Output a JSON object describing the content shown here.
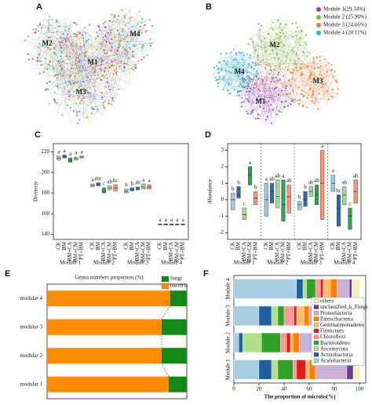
{
  "networks": [
    {
      "panel_label": "A",
      "labels": [
        "M1",
        "M2",
        "M3",
        "M4"
      ]
    },
    {
      "panel_label": "B",
      "labels": [
        "M1",
        "M2",
        "M3",
        "M4"
      ],
      "legend": [
        {
          "name": "Module 1(29.34%)",
          "color": "#9b3fb0"
        },
        {
          "name": "Module 2 (25.90%)",
          "color": "#7cba45"
        },
        {
          "name": "Module 3 (24.66%)",
          "color": "#f07c3a"
        },
        {
          "name": "Module 4 (20.11%)",
          "color": "#2fb3d9"
        }
      ]
    }
  ],
  "chart_data": [
    {
      "type": "box",
      "panel_label": "C",
      "ylabel": "Diversity",
      "categories": [
        "Module 1",
        "Module 2",
        "Module 3",
        "Module 4"
      ],
      "ylim": [
        135,
        228
      ],
      "yticks": [
        140,
        160,
        180,
        200,
        220
      ],
      "series": [
        {
          "name": "CK",
          "color": "#9ecae1",
          "q1": [
            212,
            186,
            180,
            149
          ],
          "median": [
            214,
            187.5,
            182,
            149.5
          ],
          "q3": [
            216,
            189,
            184,
            150
          ],
          "letters": [
            "a",
            "a",
            "b",
            "a"
          ]
        },
        {
          "name": "BM",
          "color": "#3a7dc0",
          "q1": [
            214,
            187,
            182,
            149
          ],
          "median": [
            215.5,
            188.5,
            183.5,
            149.5
          ],
          "q3": [
            217,
            190,
            185,
            150
          ],
          "letters": [
            "a",
            "abc",
            "b",
            "a"
          ]
        },
        {
          "name": "BM+CA",
          "color": "#31a354",
          "q1": [
            210,
            180,
            183,
            149
          ],
          "median": [
            212,
            182,
            184.5,
            149.5
          ],
          "q3": [
            214,
            185,
            186,
            150
          ],
          "letters": [
            "a",
            "c",
            "ab",
            "a"
          ]
        },
        {
          "name": "BM+CM",
          "color": "#a1d99b",
          "q1": [
            212,
            183,
            184,
            149
          ],
          "median": [
            213.5,
            185,
            186,
            149.5
          ],
          "q3": [
            215,
            187,
            189,
            150
          ],
          "letters": [
            "a",
            "ab",
            "a",
            "a"
          ]
        },
        {
          "name": "PT+BM",
          "color": "#fc9272",
          "q1": [
            214,
            182,
            184,
            149
          ],
          "median": [
            215,
            185,
            186,
            149.5
          ],
          "q3": [
            216,
            188,
            188,
            150
          ],
          "letters": [
            "a",
            "bc",
            "a",
            "a"
          ]
        }
      ]
    },
    {
      "type": "box",
      "panel_label": "D",
      "ylabel": "Abundance",
      "categories": [
        "Module 1",
        "Module 2",
        "Module 3",
        "Module 4"
      ],
      "ylim": [
        -2.4,
        3.4
      ],
      "yticks": [
        -2,
        -1,
        0,
        1,
        2,
        3
      ],
      "series": [
        {
          "name": "CK",
          "color": "#9ecae1",
          "q1": [
            -0.6,
            -1.0,
            -0.6,
            0.5
          ],
          "median": [
            0,
            0,
            -0.3,
            1.0
          ],
          "q3": [
            0.4,
            1.0,
            -0.1,
            1.5
          ],
          "letters": [
            "b",
            "a",
            "b",
            "a"
          ]
        },
        {
          "name": "BM",
          "color": "#2b6cb0",
          "q1": [
            0.1,
            -0.2,
            -0.4,
            -1.6
          ],
          "median": [
            0.3,
            0.5,
            0,
            -0.5
          ],
          "q3": [
            0.8,
            1.0,
            0.5,
            0.3
          ],
          "letters": [
            "b",
            "ab",
            "b",
            "bc"
          ]
        },
        {
          "name": "BM+CA",
          "color": "#a1d99b",
          "q1": [
            -1.2,
            -0.5,
            0.2,
            -0.3
          ],
          "median": [
            -0.9,
            0.2,
            0.5,
            0.3
          ],
          "q3": [
            -0.5,
            1.2,
            0.8,
            0.8
          ],
          "letters": [
            "c",
            "ab",
            "ab",
            "ab"
          ]
        },
        {
          "name": "BM+CM",
          "color": "#31a354",
          "q1": [
            0.9,
            -1.3,
            -0.3,
            -1.8
          ],
          "median": [
            1.5,
            -0.3,
            0.3,
            -1.0
          ],
          "q3": [
            2.0,
            1.2,
            0.9,
            -0.5
          ],
          "letters": [
            "a",
            "a",
            "ab",
            "c"
          ]
        },
        {
          "name": "PT+BM",
          "color": "#fc9272",
          "q1": [
            -0.3,
            -0.8,
            -1.2,
            -0.2
          ],
          "median": [
            0.1,
            0.2,
            1.0,
            0.5
          ],
          "q3": [
            0.5,
            0.9,
            3.0,
            1.2
          ],
          "letters": [
            "b",
            "ab",
            "a",
            "ab"
          ]
        }
      ]
    },
    {
      "type": "bar",
      "panel_label": "E",
      "title": "Genus numbers proportion (%)",
      "categories": [
        "modular 1",
        "modular 2",
        "modular 3",
        "modular 4"
      ],
      "xlim": [
        0,
        100
      ],
      "series": [
        {
          "name": "bacteria",
          "color": "#ff8c00",
          "values": [
            87,
            82,
            82,
            88
          ]
        },
        {
          "name": "fungi",
          "color": "#138a17",
          "values": [
            13,
            18,
            18,
            12
          ]
        }
      ]
    },
    {
      "type": "bar",
      "panel_label": "F",
      "xlabel": "The proportion of microbs(%)",
      "categories": [
        "Module 1",
        "Module 2",
        "Module 3",
        "Module 4"
      ],
      "xlim": [
        0,
        105
      ],
      "xticks": [
        0,
        20,
        40,
        60,
        80,
        100
      ],
      "series": [
        {
          "name": "Acidobacteria",
          "color": "#a6cee3",
          "values": [
            20,
            4,
            20,
            50
          ]
        },
        {
          "name": "Actinobacteria",
          "color": "#1f5f9f",
          "values": [
            10,
            3,
            10,
            5
          ]
        },
        {
          "name": "Ascomycota",
          "color": "#b2df8a",
          "values": [
            5,
            15,
            5,
            3
          ]
        },
        {
          "name": "Bacteroidetes",
          "color": "#33a02c",
          "values": [
            12,
            15,
            5,
            7
          ]
        },
        {
          "name": "Chloroflexi",
          "color": "#fb9a99",
          "values": [
            3,
            5,
            8,
            4
          ]
        },
        {
          "name": "Firmicutes",
          "color": "#e31a1c",
          "values": [
            7,
            3,
            2,
            2
          ]
        },
        {
          "name": "Gemmatimonadetes",
          "color": "#fdbf6f",
          "values": [
            3,
            2,
            6,
            6
          ]
        },
        {
          "name": "Patescibacteria",
          "color": "#ff7f00",
          "values": [
            5,
            5,
            4,
            5
          ]
        },
        {
          "name": "Proteobacteria",
          "color": "#cab2d6",
          "values": [
            25,
            28,
            28,
            10
          ]
        },
        {
          "name": "unclassified_k_Fungi",
          "color": "#6a3d9a",
          "values": [
            5,
            12,
            6,
            2
          ]
        },
        {
          "name": "others",
          "color": "#f4f0b8",
          "values": [
            5,
            8,
            6,
            6
          ]
        }
      ]
    }
  ]
}
